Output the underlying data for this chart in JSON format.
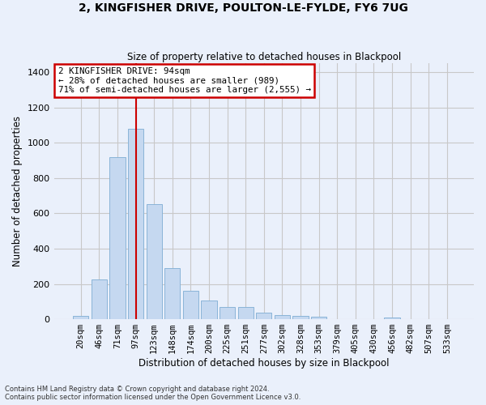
{
  "title": "2, KINGFISHER DRIVE, POULTON-LE-FYLDE, FY6 7UG",
  "subtitle": "Size of property relative to detached houses in Blackpool",
  "xlabel": "Distribution of detached houses by size in Blackpool",
  "ylabel": "Number of detached properties",
  "categories": [
    "20sqm",
    "46sqm",
    "71sqm",
    "97sqm",
    "123sqm",
    "148sqm",
    "174sqm",
    "200sqm",
    "225sqm",
    "251sqm",
    "277sqm",
    "302sqm",
    "328sqm",
    "353sqm",
    "379sqm",
    "405sqm",
    "430sqm",
    "456sqm",
    "482sqm",
    "507sqm",
    "533sqm"
  ],
  "values": [
    20,
    225,
    920,
    1080,
    650,
    290,
    160,
    108,
    70,
    70,
    38,
    25,
    20,
    15,
    0,
    0,
    0,
    10,
    0,
    0,
    0
  ],
  "bar_color": "#c5d8f0",
  "bar_edge_color": "#8ab4d8",
  "bar_width": 0.85,
  "red_line_x": 3.0,
  "annotation_title": "2 KINGFISHER DRIVE: 94sqm",
  "annotation_line1": "← 28% of detached houses are smaller (989)",
  "annotation_line2": "71% of semi-detached houses are larger (2,555) →",
  "annotation_box_color": "#ffffff",
  "annotation_border_color": "#cc0000",
  "ylim": [
    0,
    1450
  ],
  "yticks": [
    0,
    200,
    400,
    600,
    800,
    1000,
    1200,
    1400
  ],
  "grid_color": "#c8c8c8",
  "bg_color": "#eaf0fb",
  "footnote1": "Contains HM Land Registry data © Crown copyright and database right 2024.",
  "footnote2": "Contains public sector information licensed under the Open Government Licence v3.0."
}
